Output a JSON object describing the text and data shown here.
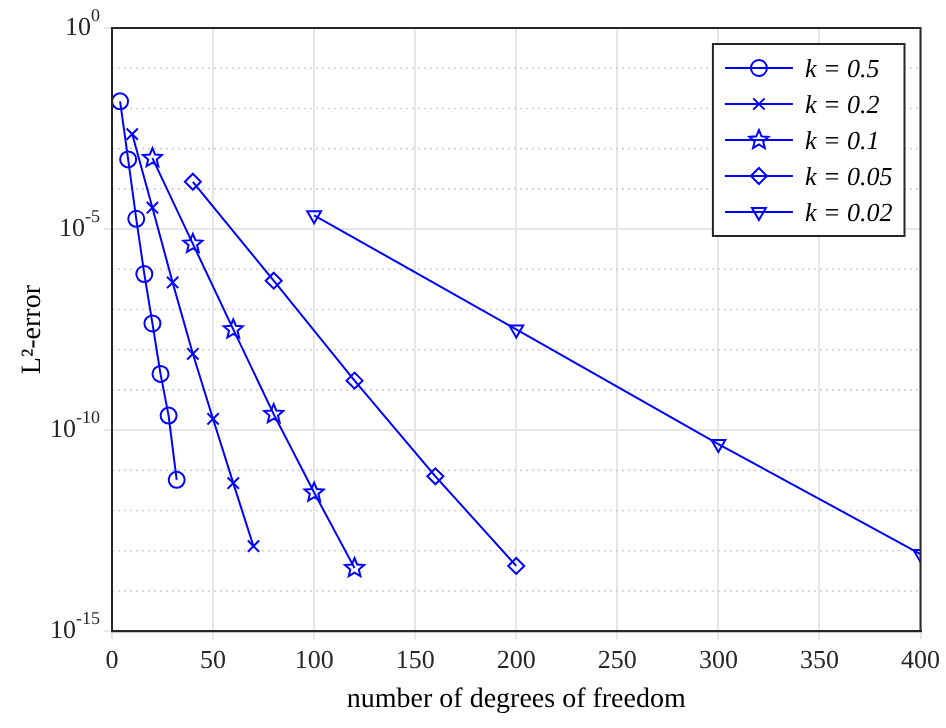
{
  "chart_data": {
    "type": "line",
    "xlabel": "number of degrees of freedom",
    "ylabel": "L²-error",
    "log": "y",
    "grid": true,
    "legend": "top right",
    "xlim": [
      0,
      400
    ],
    "xticks": [
      0,
      50,
      100,
      150,
      200,
      250,
      300,
      350,
      400
    ],
    "ylim": [
      1e-15,
      1
    ],
    "yticks": [
      {
        "value": 1,
        "label": "10$^{0}$"
      },
      {
        "value": 0.1,
        "label": null
      },
      {
        "value": 0.01,
        "label": null
      },
      {
        "value": 0.001,
        "label": null
      },
      {
        "value": 0.0001,
        "label": null
      },
      {
        "value": 1e-05,
        "label": "10$^{-5}$"
      },
      {
        "value": 1e-06,
        "label": null
      },
      {
        "value": 1e-07,
        "label": null
      },
      {
        "value": 1e-08,
        "label": null
      },
      {
        "value": 1e-09,
        "label": null
      },
      {
        "value": 1e-10,
        "label": "10$^{-10}$"
      },
      {
        "value": 1e-11,
        "label": null
      },
      {
        "value": 1e-12,
        "label": null
      },
      {
        "value": 1e-13,
        "label": null
      },
      {
        "value": 1e-14,
        "label": null
      },
      {
        "value": 1e-15,
        "label": "10$^{-15}$"
      }
    ],
    "series": [
      {
        "name": "k = 0.5",
        "color": "#0000ff",
        "marker": "circle",
        "x": [
          4,
          8,
          12,
          16,
          20,
          24,
          28,
          32
        ],
        "values": [
          0.015,
          0.00054,
          1.8e-05,
          7.6e-07,
          4.5e-08,
          2.5e-09,
          2.3e-10,
          5.8e-12
        ]
      },
      {
        "name": "k = 0.2",
        "color": "#0000ff",
        "marker": "cross",
        "x": [
          10,
          20,
          30,
          40,
          50,
          60,
          70
        ],
        "values": [
          0.0023,
          3.4e-05,
          4.7e-07,
          7.9e-09,
          1.9e-10,
          4.8e-12,
          1.3e-13
        ]
      },
      {
        "name": "k = 0.1",
        "color": "#0000ff",
        "marker": "star",
        "x": [
          20,
          40,
          60,
          80,
          100,
          120
        ],
        "values": [
          0.00058,
          4.3e-06,
          3.2e-08,
          2.5e-10,
          2.8e-12,
          3.7e-14
        ]
      },
      {
        "name": "k = 0.05",
        "color": "#0000ff",
        "marker": "diamond",
        "x": [
          40,
          80,
          120,
          160,
          200
        ],
        "values": [
          0.00015,
          5.2e-07,
          1.7e-09,
          7.1e-12,
          4.2e-14
        ]
      },
      {
        "name": "k = 0.02",
        "color": "#0000ff",
        "marker": "triangle",
        "x": [
          100,
          200,
          300,
          400
        ],
        "values": [
          2.2e-05,
          3.2e-08,
          4.5e-11,
          8.3e-14
        ]
      }
    ]
  }
}
